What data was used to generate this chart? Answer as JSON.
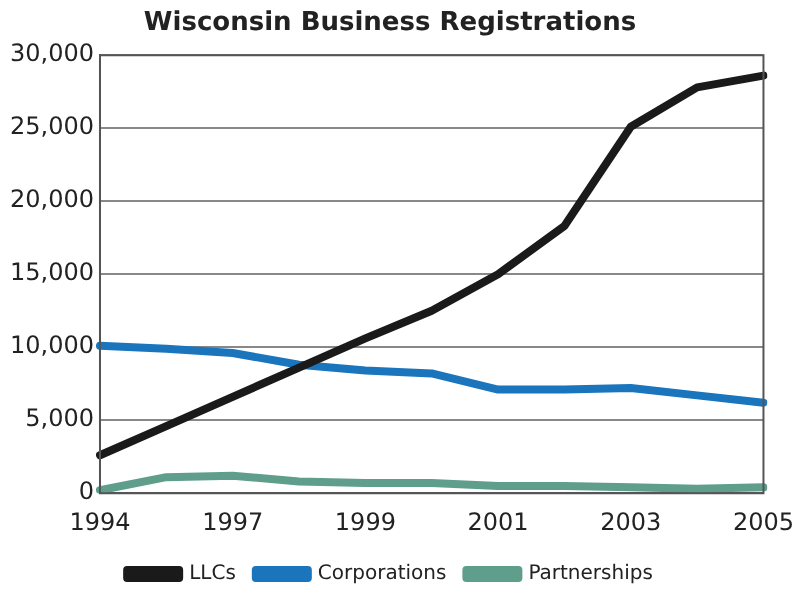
{
  "chart_data": {
    "type": "line",
    "title": "Wisconsin Business Registrations",
    "categories": [
      "1994",
      null,
      "1997",
      null,
      "1999",
      null,
      "2001",
      null,
      "2003",
      null,
      "2005"
    ],
    "series": [
      {
        "name": "LLCs",
        "color": "#1a1a1a",
        "values": [
          2600,
          4600,
          6600,
          8600,
          10600,
          12500,
          15000,
          18300,
          25100,
          27800,
          28600
        ]
      },
      {
        "name": "Corporations",
        "color": "#1b75bc",
        "values": [
          10100,
          9900,
          9600,
          8800,
          8400,
          8200,
          7100,
          7100,
          7200,
          6700,
          6200
        ]
      },
      {
        "name": "Partnerships",
        "color": "#5e9e8a",
        "values": [
          200,
          1100,
          1200,
          800,
          700,
          700,
          500,
          500,
          400,
          300,
          400
        ]
      }
    ],
    "ylim": [
      0,
      30000
    ],
    "yticks": [
      0,
      {
        "value": 5000,
        "label": "5,000"
      },
      {
        "value": 10000,
        "label": "10,000"
      },
      {
        "value": 15000,
        "label": "15,000"
      },
      {
        "value": 20000,
        "label": "20,000"
      },
      {
        "value": 25000,
        "label": "25,000"
      },
      {
        "value": 30000,
        "label": "30,000"
      }
    ],
    "grid": "y",
    "legend": "bottom",
    "marker": "none",
    "line_style": "solid"
  }
}
